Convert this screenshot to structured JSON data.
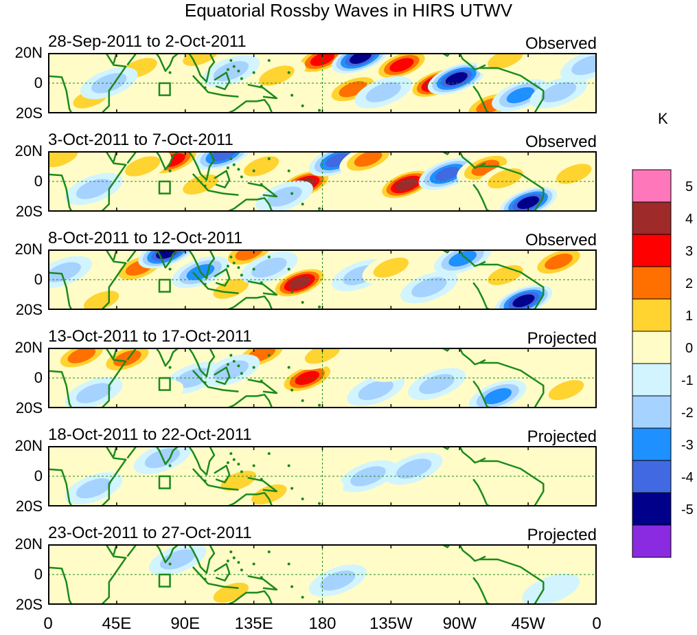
{
  "title": "Equatorial Rossby Waves in HIRS UTWV",
  "unit": "K",
  "lat_labels": [
    "20N",
    "0",
    "20S"
  ],
  "lon_labels": [
    "0",
    "45E",
    "90E",
    "135E",
    "180",
    "135W",
    "90W",
    "45W",
    "0"
  ],
  "panels": [
    {
      "period": "28-Sep-2011 to 2-Oct-2011",
      "type": "Observed"
    },
    {
      "period": "3-Oct-2011 to 7-Oct-2011",
      "type": "Observed"
    },
    {
      "period": "8-Oct-2011 to 12-Oct-2011",
      "type": "Observed"
    },
    {
      "period": "13-Oct-2011 to 17-Oct-2011",
      "type": "Projected"
    },
    {
      "period": "18-Oct-2011 to 22-Oct-2011",
      "type": "Projected"
    },
    {
      "period": "23-Oct-2011 to 27-Oct-2011",
      "type": "Projected"
    }
  ],
  "colorbar": {
    "labels": [
      "5",
      "4",
      "3",
      "2",
      "1",
      "0",
      "-1",
      "-2",
      "-3",
      "-4",
      "-5"
    ],
    "colors": [
      "#ff77bb",
      "#9e2a2a",
      "#ff0000",
      "#ff7000",
      "#ffd330",
      "#fffcc8",
      "#d2f4ff",
      "#a6d2ff",
      "#1e90ff",
      "#4169e1",
      "#00008b",
      "#8a2be2"
    ]
  },
  "colors": {
    "coast": "#1a8a1a",
    "frame": "#000000"
  },
  "chart_data": {
    "type": "heatmap",
    "variable": "UTWV anomaly",
    "unit": "K",
    "levels": [
      -5,
      -4,
      -3,
      -2,
      -1,
      0,
      1,
      2,
      3,
      4,
      5
    ],
    "lat_range": [
      -20,
      20
    ],
    "lon_range": [
      0,
      360
    ],
    "features": [
      [
        {
          "lon": 180,
          "lat": 16,
          "val": 3.2
        },
        {
          "lon": 205,
          "lat": 17,
          "val": -4.5
        },
        {
          "lon": 232,
          "lat": 12,
          "val": 3.5
        },
        {
          "lon": 255,
          "lat": 0,
          "val": 4.6
        },
        {
          "lon": 268,
          "lat": 3,
          "val": -4.2
        },
        {
          "lon": 290,
          "lat": -15,
          "val": 3.0
        },
        {
          "lon": 200,
          "lat": -4,
          "val": 2.4
        },
        {
          "lon": 220,
          "lat": -6,
          "val": -1.4
        },
        {
          "lon": 310,
          "lat": -8,
          "val": -2.2
        },
        {
          "lon": 28,
          "lat": -10,
          "val": 1.8
        },
        {
          "lon": 60,
          "lat": 10,
          "val": 1.5
        },
        {
          "lon": 100,
          "lat": 18,
          "val": 1.7
        },
        {
          "lon": 120,
          "lat": 8,
          "val": -1.4
        },
        {
          "lon": 150,
          "lat": 5,
          "val": 1.2
        },
        {
          "lon": 300,
          "lat": 16,
          "val": 1.4
        },
        {
          "lon": 335,
          "lat": -6,
          "val": -1.8
        },
        {
          "lon": 40,
          "lat": 0,
          "val": -1.2
        },
        {
          "lon": 355,
          "lat": 12,
          "val": -1.5
        }
      ],
      [
        {
          "lon": 82,
          "lat": 14,
          "val": 3.2
        },
        {
          "lon": 115,
          "lat": 18,
          "val": -3.5
        },
        {
          "lon": 168,
          "lat": -2,
          "val": 4.5
        },
        {
          "lon": 190,
          "lat": 14,
          "val": -3.8
        },
        {
          "lon": 210,
          "lat": 15,
          "val": 3.0
        },
        {
          "lon": 235,
          "lat": -2,
          "val": 4.2
        },
        {
          "lon": 262,
          "lat": 5,
          "val": -3.8
        },
        {
          "lon": 287,
          "lat": 9,
          "val": 2.6
        },
        {
          "lon": 315,
          "lat": -14,
          "val": -4.6
        },
        {
          "lon": 62,
          "lat": 10,
          "val": 1.8
        },
        {
          "lon": 30,
          "lat": -5,
          "val": -1.2
        },
        {
          "lon": 100,
          "lat": -2,
          "val": 1.9
        },
        {
          "lon": 140,
          "lat": 10,
          "val": 1.6
        },
        {
          "lon": 155,
          "lat": -10,
          "val": -1.5
        },
        {
          "lon": 300,
          "lat": 2,
          "val": 1.4
        },
        {
          "lon": 345,
          "lat": 5,
          "val": 1.3
        },
        {
          "lon": 8,
          "lat": 16,
          "val": 1.7
        }
      ],
      [
        {
          "lon": 60,
          "lat": 8,
          "val": 3.0
        },
        {
          "lon": 78,
          "lat": 18,
          "val": -4.2
        },
        {
          "lon": 132,
          "lat": 18,
          "val": 3.0
        },
        {
          "lon": 165,
          "lat": -2,
          "val": 4.3
        },
        {
          "lon": 100,
          "lat": 5,
          "val": -2.4
        },
        {
          "lon": 205,
          "lat": 3,
          "val": -1.8
        },
        {
          "lon": 225,
          "lat": 8,
          "val": 1.8
        },
        {
          "lon": 250,
          "lat": -5,
          "val": -1.6
        },
        {
          "lon": 272,
          "lat": 14,
          "val": -2.3
        },
        {
          "lon": 312,
          "lat": -14,
          "val": -4.2
        },
        {
          "lon": 335,
          "lat": 12,
          "val": 3.0
        },
        {
          "lon": 35,
          "lat": -14,
          "val": 1.6
        },
        {
          "lon": 120,
          "lat": -6,
          "val": 1.6
        },
        {
          "lon": 145,
          "lat": 8,
          "val": -1.6
        },
        {
          "lon": 300,
          "lat": 3,
          "val": 1.3
        },
        {
          "lon": 10,
          "lat": 5,
          "val": -1.4
        }
      ],
      [
        {
          "lon": 22,
          "lat": 15,
          "val": 2.2
        },
        {
          "lon": 52,
          "lat": 13,
          "val": 2.6
        },
        {
          "lon": 140,
          "lat": 16,
          "val": 2.8
        },
        {
          "lon": 170,
          "lat": 0,
          "val": 3.2
        },
        {
          "lon": 95,
          "lat": 0,
          "val": -1.8
        },
        {
          "lon": 120,
          "lat": 5,
          "val": -1.3
        },
        {
          "lon": 215,
          "lat": -8,
          "val": -1.4
        },
        {
          "lon": 255,
          "lat": -4,
          "val": -1.6
        },
        {
          "lon": 295,
          "lat": -12,
          "val": -2.4
        },
        {
          "lon": 180,
          "lat": 16,
          "val": 1.3
        },
        {
          "lon": 30,
          "lat": -10,
          "val": -1.4
        },
        {
          "lon": 340,
          "lat": -8,
          "val": 1.3
        },
        {
          "lon": 230,
          "lat": 8,
          "val": 1.0
        },
        {
          "lon": 70,
          "lat": -12,
          "val": 1.0
        }
      ],
      [
        {
          "lon": 125,
          "lat": -3,
          "val": 1.8
        },
        {
          "lon": 145,
          "lat": -12,
          "val": 1.5
        },
        {
          "lon": 75,
          "lat": 12,
          "val": -1.4
        },
        {
          "lon": 210,
          "lat": 0,
          "val": -1.3
        },
        {
          "lon": 240,
          "lat": 5,
          "val": -1.1
        },
        {
          "lon": 300,
          "lat": -10,
          "val": 1.0
        },
        {
          "lon": 30,
          "lat": -8,
          "val": -1.2
        },
        {
          "lon": 175,
          "lat": -12,
          "val": 1.0
        }
      ],
      [
        {
          "lon": 120,
          "lat": -12,
          "val": 1.8
        },
        {
          "lon": 85,
          "lat": 10,
          "val": -1.2
        },
        {
          "lon": 190,
          "lat": -4,
          "val": -1.3
        },
        {
          "lon": 40,
          "lat": -5,
          "val": 1.0
        },
        {
          "lon": 330,
          "lat": -10,
          "val": -1.0
        },
        {
          "lon": 250,
          "lat": 8,
          "val": 1.0
        }
      ]
    ]
  }
}
